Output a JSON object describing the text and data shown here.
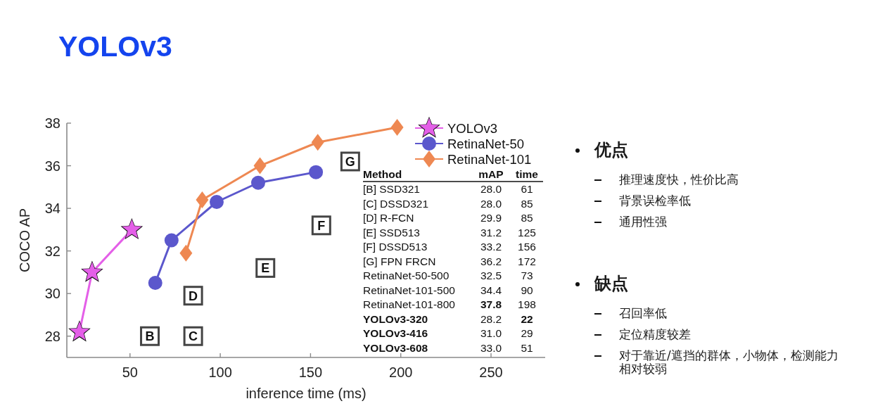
{
  "chart_data": [
    {
      "type": "line",
      "title": "YOLOv3",
      "xlabel": "inference time (ms)",
      "ylabel": "COCO AP",
      "series": [
        {
          "name": "YOLOv3",
          "type": "line",
          "marker": "star",
          "color": "#e45fe8",
          "x": [
            22,
            29,
            51
          ],
          "values": [
            28.2,
            31.0,
            33.0
          ]
        },
        {
          "name": "RetinaNet-50",
          "type": "line",
          "marker": "circle",
          "color": "#5b57cc",
          "x": [
            64,
            73,
            98,
            121,
            153
          ],
          "values": [
            30.5,
            32.5,
            34.3,
            35.2,
            35.7
          ]
        },
        {
          "name": "RetinaNet-101",
          "type": "line",
          "marker": "diamond",
          "color": "#ee8852",
          "x": [
            81,
            90,
            122,
            154,
            198
          ],
          "values": [
            31.9,
            34.4,
            36.0,
            37.1,
            37.8
          ]
        },
        {
          "type": "scatter",
          "marker": "square",
          "color": "#444444",
          "x": [
            61,
            85,
            85,
            125,
            156,
            172
          ],
          "values": [
            28.0,
            28.0,
            29.9,
            31.2,
            33.2,
            36.2
          ],
          "value_labels": [
            "B",
            "C",
            "D",
            "E",
            "F",
            "G"
          ]
        }
      ],
      "xlim": [
        15,
        280
      ],
      "xticks": [
        50,
        100,
        150,
        200,
        250
      ],
      "ylim": [
        27,
        38
      ],
      "yticks": [
        28,
        30,
        32,
        34,
        36,
        38
      ],
      "legend": "top right",
      "annotations": [
        "Method\tmAP\ttime",
        "[B] SSD321\t28.0\t61",
        "[C] DSSD321\t28.0\t85",
        "[D] R-FCN\t29.9\t85",
        "[E] SSD513\t31.2\t125",
        "[F] DSSD513\t33.2\t156",
        "[G] FPN FRCN\t36.2\t172",
        "RetinaNet-50-500\t32.5\t73",
        "RetinaNet-101-500\t34.4\t90",
        "RetinaNet-101-800\t37.8\t198",
        "YOLOv3-320\t28.2\t22",
        "YOLOv3-416\t31.0\t29",
        "YOLOv3-608\t33.0\t51"
      ]
    },
    {
      "type": "other",
      "title": "优点",
      "annotations": [
        "推理速度快，性价比高",
        "背景误检率低",
        "通用性强"
      ]
    },
    {
      "type": "other",
      "title": "缺点",
      "annotations": [
        "召回率低",
        "定位精度较差",
        "对于靠近/遮挡的群体，小物体，检测能力相对较弱"
      ]
    }
  ]
}
